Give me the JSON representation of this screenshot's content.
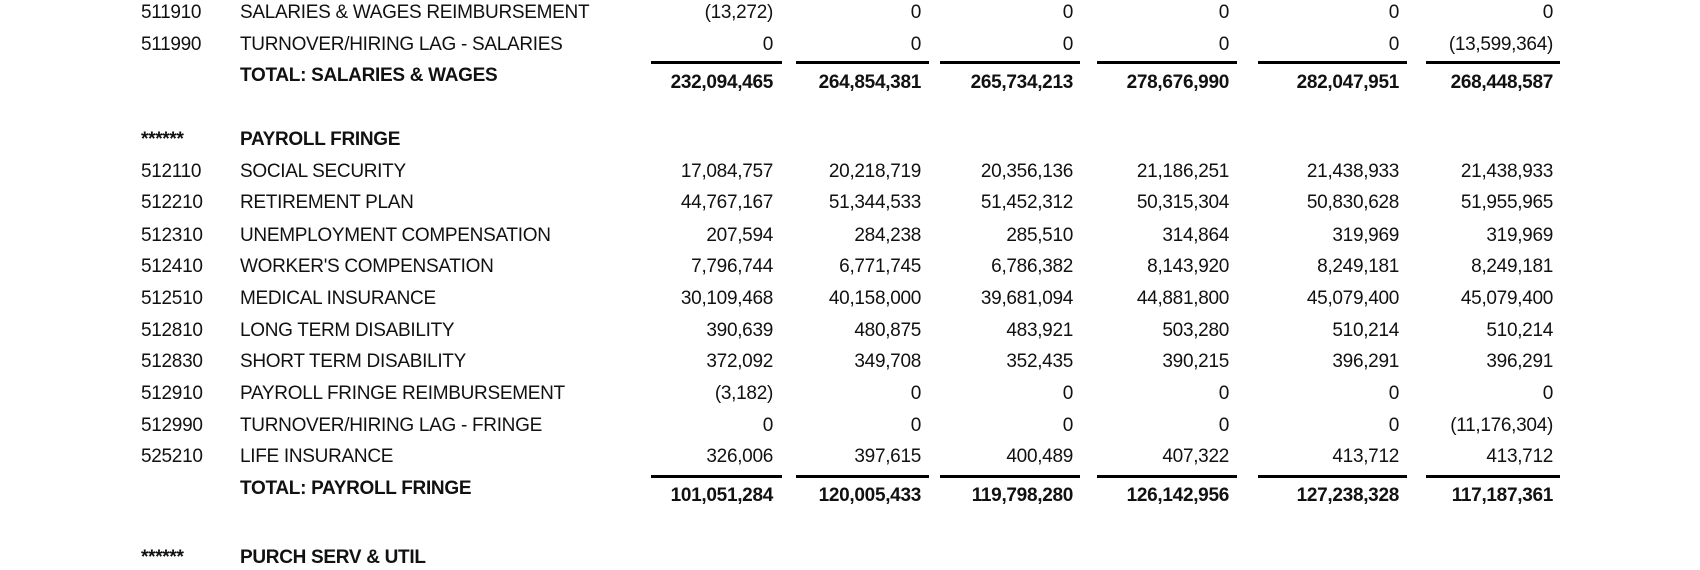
{
  "salaries": {
    "rows": [
      {
        "code": "511910",
        "desc": "SALARIES & WAGES REIMBURSEMENT",
        "values": [
          "(13,272)",
          "0",
          "0",
          "0",
          "0",
          "0"
        ]
      },
      {
        "code": "511990",
        "desc": "TURNOVER/HIRING LAG - SALARIES",
        "values": [
          "0",
          "0",
          "0",
          "0",
          "0",
          "(13,599,364)"
        ]
      }
    ],
    "total": {
      "label": "TOTAL:  SALARIES & WAGES",
      "values": [
        "232,094,465",
        "264,854,381",
        "265,734,213",
        "278,676,990",
        "282,047,951",
        "268,448,587"
      ]
    }
  },
  "fringe": {
    "marker": "******",
    "heading": "PAYROLL FRINGE",
    "rows": [
      {
        "code": "512110",
        "desc": "SOCIAL SECURITY",
        "values": [
          "17,084,757",
          "20,218,719",
          "20,356,136",
          "21,186,251",
          "21,438,933",
          "21,438,933"
        ]
      },
      {
        "code": "512210",
        "desc": "RETIREMENT PLAN",
        "values": [
          "44,767,167",
          "51,344,533",
          "51,452,312",
          "50,315,304",
          "50,830,628",
          "51,955,965"
        ]
      },
      {
        "code": "512310",
        "desc": "UNEMPLOYMENT COMPENSATION",
        "values": [
          "207,594",
          "284,238",
          "285,510",
          "314,864",
          "319,969",
          "319,969"
        ]
      },
      {
        "code": "512410",
        "desc": "WORKER'S COMPENSATION",
        "values": [
          "7,796,744",
          "6,771,745",
          "6,786,382",
          "8,143,920",
          "8,249,181",
          "8,249,181"
        ]
      },
      {
        "code": "512510",
        "desc": "MEDICAL INSURANCE",
        "values": [
          "30,109,468",
          "40,158,000",
          "39,681,094",
          "44,881,800",
          "45,079,400",
          "45,079,400"
        ]
      },
      {
        "code": "512810",
        "desc": "LONG TERM DISABILITY",
        "values": [
          "390,639",
          "480,875",
          "483,921",
          "503,280",
          "510,214",
          "510,214"
        ]
      },
      {
        "code": "512830",
        "desc": "SHORT TERM DISABILITY",
        "values": [
          "372,092",
          "349,708",
          "352,435",
          "390,215",
          "396,291",
          "396,291"
        ]
      },
      {
        "code": "512910",
        "desc": "PAYROLL FRINGE REIMBURSEMENT",
        "values": [
          "(3,182)",
          "0",
          "0",
          "0",
          "0",
          "0"
        ]
      },
      {
        "code": "512990",
        "desc": "TURNOVER/HIRING LAG - FRINGE",
        "values": [
          "0",
          "0",
          "0",
          "0",
          "0",
          "(11,176,304)"
        ]
      },
      {
        "code": "525210",
        "desc": "LIFE INSURANCE",
        "values": [
          "326,006",
          "397,615",
          "400,489",
          "407,322",
          "413,712",
          "413,712"
        ]
      }
    ],
    "total": {
      "label": "TOTAL:  PAYROLL FRINGE",
      "values": [
        "101,051,284",
        "120,005,433",
        "119,798,280",
        "126,142,956",
        "127,238,328",
        "117,187,361"
      ]
    }
  },
  "next_section": {
    "marker": "******",
    "heading": "PURCH SERV & UTIL"
  }
}
